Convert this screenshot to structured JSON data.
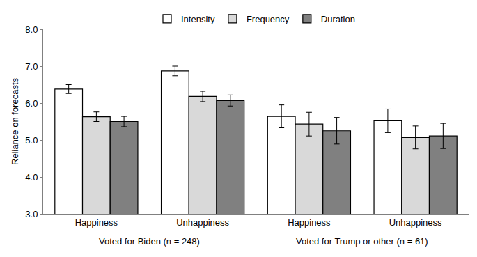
{
  "chart_data": {
    "type": "bar",
    "y_label": "Reliance on forecasts",
    "categories": [
      "Happiness",
      "Unhappiness",
      "Happiness",
      "Unhappiness"
    ],
    "groups": [
      "Voted for Biden (n = 248)",
      "Voted for Biden (n = 248)",
      "Voted for Trump or other (n = 61)",
      "Voted for Trump or other (n = 61)"
    ],
    "series": [
      {
        "name": "Intensity",
        "color": "#ffffff",
        "values": [
          6.38,
          6.87,
          5.64,
          5.52
        ],
        "errors": [
          0.12,
          0.13,
          0.31,
          0.32
        ]
      },
      {
        "name": "Frequency",
        "color": "#d9d9d9",
        "values": [
          5.63,
          6.18,
          5.43,
          5.07
        ],
        "errors": [
          0.13,
          0.14,
          0.32,
          0.31
        ]
      },
      {
        "name": "Duration",
        "color": "#808080",
        "values": [
          5.5,
          6.07,
          5.25,
          5.11
        ],
        "errors": [
          0.14,
          0.15,
          0.36,
          0.34
        ]
      }
    ],
    "ylim": [
      3.0,
      8.0
    ],
    "yticks": [
      {
        "value": 3.0,
        "label": "3.0"
      },
      {
        "value": 4.0,
        "label": "4.0"
      },
      {
        "value": 5.0,
        "label": "5.0"
      },
      {
        "value": 6.0,
        "label": "6.0"
      },
      {
        "value": 7.0,
        "label": "7.0"
      },
      {
        "value": 8.0,
        "label": "8.0"
      }
    ],
    "grid": false,
    "legend": "top"
  }
}
